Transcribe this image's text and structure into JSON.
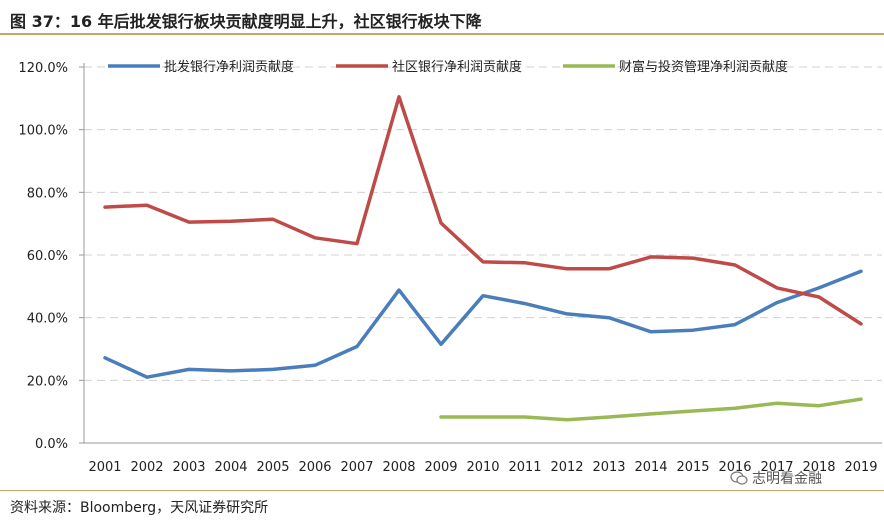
{
  "title": "图 37：16 年后批发银行板块贡献度明显上升，社区银行板块下降",
  "source": "资料来源：Bloomberg，天风证券研究所",
  "watermark": "志明看金融",
  "chart_data": {
    "type": "line",
    "x": [
      "2001",
      "2002",
      "2003",
      "2004",
      "2005",
      "2006",
      "2007",
      "2008",
      "2009",
      "2010",
      "2011",
      "2012",
      "2013",
      "2014",
      "2015",
      "2016",
      "2017",
      "2018",
      "2019"
    ],
    "ylim": [
      0,
      120
    ],
    "yticks": [
      "0.0%",
      "20.0%",
      "40.0%",
      "60.0%",
      "80.0%",
      "100.0%",
      "120.0%"
    ],
    "grid": true,
    "legend_position": "top",
    "series": [
      {
        "name": "批发银行净利润贡献度",
        "color": "#4a7ebb",
        "values": [
          27.2,
          21.0,
          23.5,
          23.0,
          23.5,
          24.8,
          30.8,
          48.8,
          31.5,
          47.0,
          44.5,
          41.2,
          40.0,
          35.5,
          36.0,
          37.8,
          44.8,
          49.5,
          54.8
        ]
      },
      {
        "name": "社区银行净利润贡献度",
        "color": "#be4b48",
        "values": [
          75.3,
          75.9,
          70.5,
          70.8,
          71.4,
          65.5,
          63.6,
          110.5,
          70.2,
          57.8,
          57.5,
          55.6,
          55.6,
          59.4,
          59.0,
          56.8,
          49.5,
          46.6,
          38.0
        ]
      },
      {
        "name": "财富与投资管理净利润贡献度",
        "color": "#98b954",
        "values": [
          null,
          null,
          null,
          null,
          null,
          null,
          null,
          null,
          8.3,
          8.3,
          8.3,
          7.4,
          8.3,
          9.3,
          10.2,
          11.1,
          12.7,
          11.9,
          14.0
        ]
      }
    ]
  }
}
